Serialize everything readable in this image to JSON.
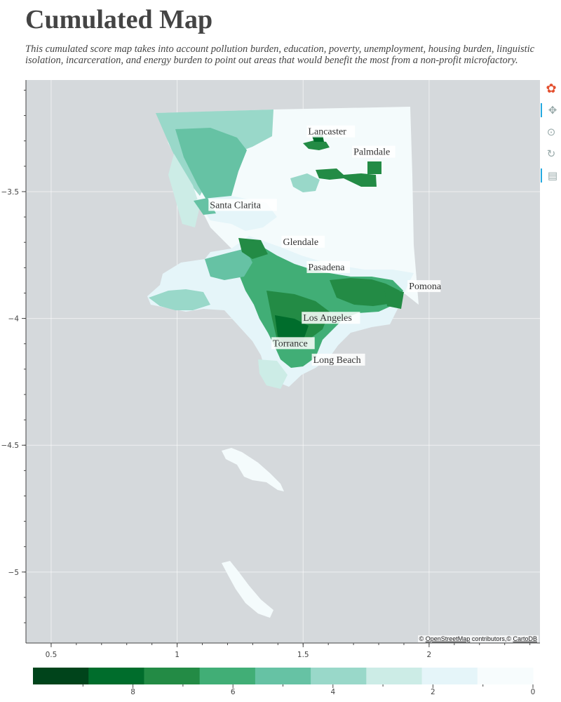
{
  "title": "Cumulated Map",
  "subtitle": "This cumulated score map takes into account pollution burden, education, poverty, unemployment, housing burden, linguistic isolation, incarceration, and energy burden to point out areas that would benefit the most from a non-profit microfactory.",
  "toolbar": [
    {
      "icon": "bokeh-logo-icon",
      "interactable": false,
      "active": false
    },
    {
      "icon": "pan-icon",
      "interactable": true,
      "active": true
    },
    {
      "icon": "wheel-zoom-icon",
      "interactable": true,
      "active": false
    },
    {
      "icon": "reset-icon",
      "interactable": true,
      "active": false
    },
    {
      "icon": "hover-icon",
      "interactable": true,
      "active": true
    }
  ],
  "attribution": {
    "prefix": "©",
    "osm": "OpenStreetMap",
    "mid": "contributors,©",
    "carto": "CartoDB"
  },
  "chart_data": {
    "type": "heatmap",
    "title": "Cumulated Map",
    "x_ticks": [
      0.5,
      1,
      1.5,
      2
    ],
    "x_tick_labels": [
      "0.5",
      "1",
      "1.5",
      "2"
    ],
    "y_ticks": [
      -3.5,
      -4,
      -4.5,
      -5
    ],
    "y_tick_labels": [
      "−3.5",
      "−4",
      "−4.5",
      "−5"
    ],
    "xlim": [
      0.4,
      2.44
    ],
    "ylim": [
      -5.28,
      -3.06
    ],
    "grid": true,
    "cities": [
      {
        "name": "Lancaster",
        "x": 1.52,
        "y": -3.275
      },
      {
        "name": "Palmdale",
        "x": 1.7,
        "y": -3.355
      },
      {
        "name": "Santa Clarita",
        "x": 1.13,
        "y": -3.565
      },
      {
        "name": "Glendale",
        "x": 1.42,
        "y": -3.71
      },
      {
        "name": "Pasadena",
        "x": 1.52,
        "y": -3.81
      },
      {
        "name": "Pomona",
        "x": 1.92,
        "y": -3.885
      },
      {
        "name": "Los Angeles",
        "x": 1.5,
        "y": -4.01
      },
      {
        "name": "Torrance",
        "x": 1.38,
        "y": -4.11
      },
      {
        "name": "Long Beach",
        "x": 1.54,
        "y": -4.175
      }
    ],
    "colorbar": {
      "ticks": [
        8,
        6,
        4,
        2,
        0
      ],
      "range": [
        10,
        0
      ],
      "colors": [
        "#00441b",
        "#006d2c",
        "#238b45",
        "#41ae76",
        "#66c2a4",
        "#99d8c9",
        "#ccece6",
        "#e5f5f9",
        "#f7fcfd"
      ]
    },
    "colors": {
      "background": "#d5d9dc",
      "land": "#f4fbfc",
      "grid": "#ffffff"
    }
  }
}
